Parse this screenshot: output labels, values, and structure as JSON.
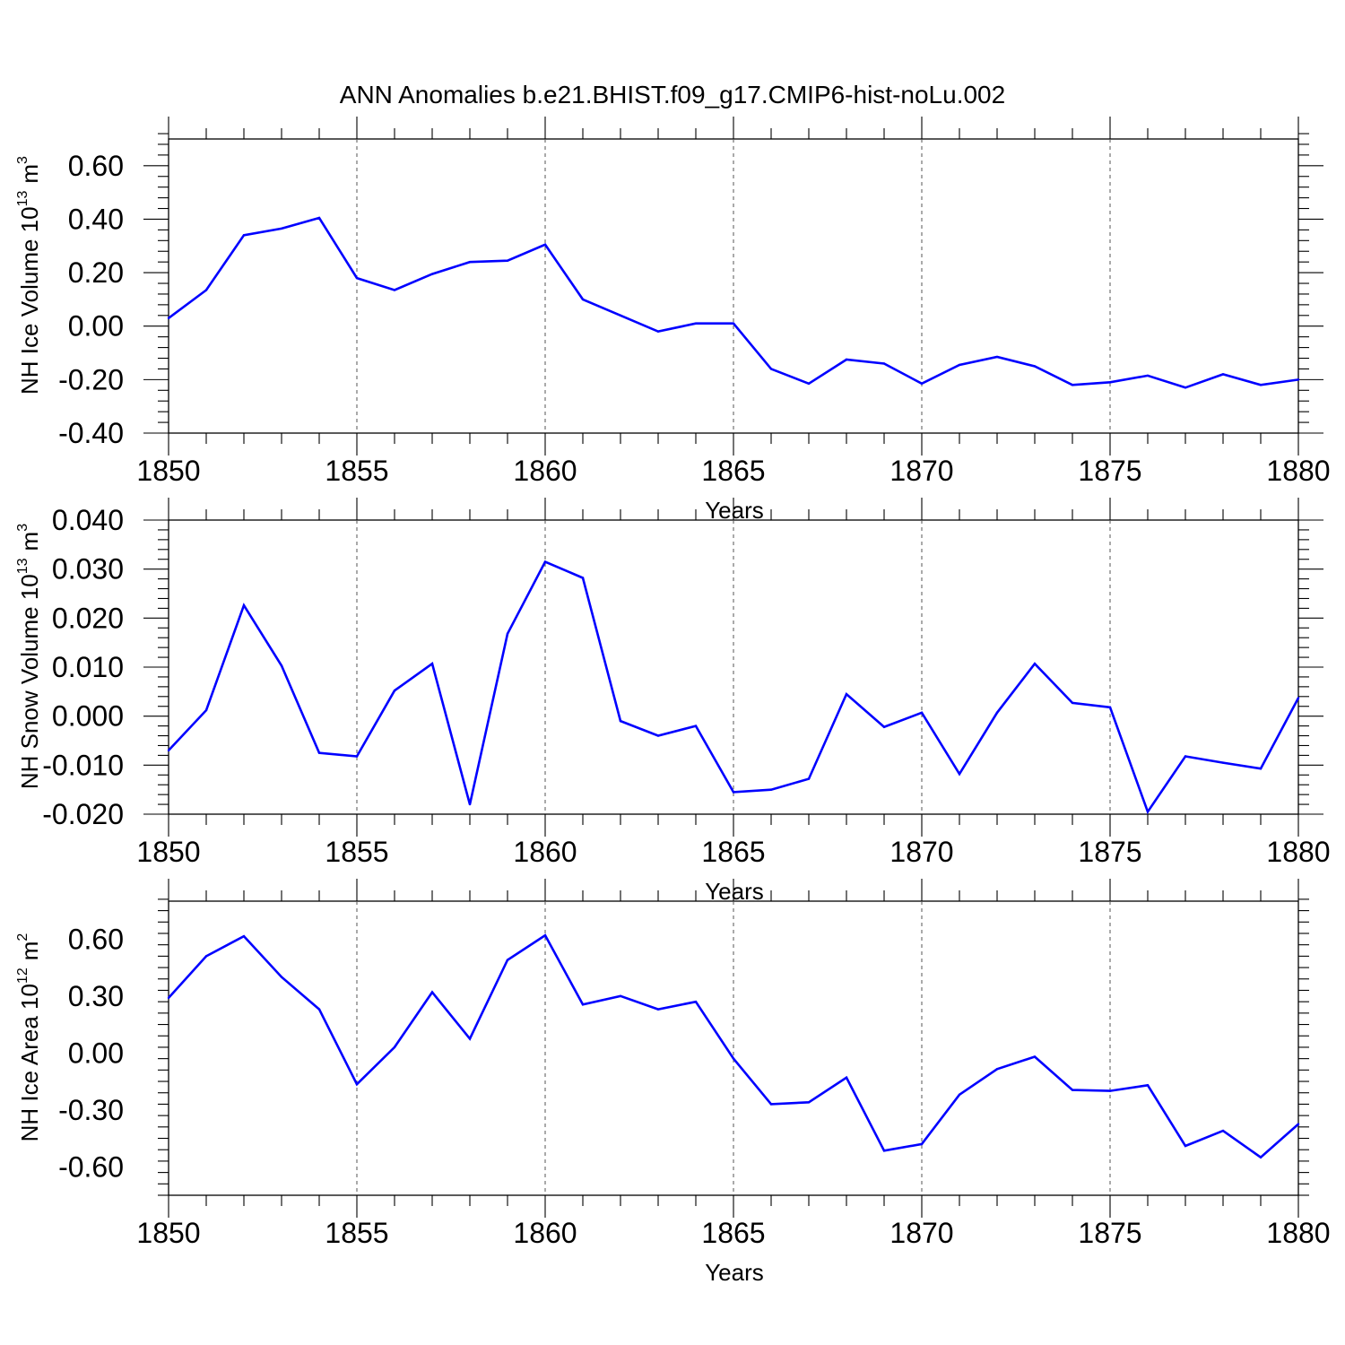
{
  "figure": {
    "title": "ANN Anomalies b.e21.BHIST.f09_g17.CMIP6-hist-noLu.002"
  },
  "colors": {
    "series": "#0000ff",
    "axes": "#000000",
    "grid": "#555555"
  },
  "chart_data": [
    {
      "type": "line",
      "ylabel": "NH Ice Volume 10",
      "ylabel_exp": "13",
      "ylabel_unit": "m",
      "ylabel_unit_exp": "3",
      "xlabel": "Years",
      "xlim": [
        1850,
        1880
      ],
      "ylim": [
        -0.4,
        0.7
      ],
      "xticks": [
        1850,
        1855,
        1860,
        1865,
        1870,
        1875,
        1880
      ],
      "xtick_labels": [
        "1850",
        "1855",
        "1860",
        "1865",
        "1870",
        "1875",
        "1880"
      ],
      "yticks": [
        -0.4,
        -0.2,
        0.0,
        0.2,
        0.4,
        0.6
      ],
      "ytick_labels": [
        "-0.40",
        "-0.20",
        "0.00",
        "0.20",
        "0.40",
        "0.60"
      ],
      "grid": "vertical dashed at major x ticks",
      "x": [
        1850,
        1851,
        1852,
        1853,
        1854,
        1855,
        1856,
        1857,
        1858,
        1859,
        1860,
        1861,
        1862,
        1863,
        1864,
        1865,
        1866,
        1867,
        1868,
        1869,
        1870,
        1871,
        1872,
        1873,
        1874,
        1875,
        1876,
        1877,
        1878,
        1879,
        1880
      ],
      "values": [
        0.03,
        0.135,
        0.34,
        0.365,
        0.405,
        0.18,
        0.135,
        0.195,
        0.24,
        0.245,
        0.305,
        0.1,
        0.04,
        -0.02,
        0.01,
        0.01,
        -0.16,
        -0.215,
        -0.125,
        -0.14,
        -0.215,
        -0.145,
        -0.115,
        -0.15,
        -0.22,
        -0.21,
        -0.185,
        -0.23,
        -0.18,
        -0.22,
        -0.2
      ]
    },
    {
      "type": "line",
      "ylabel": "NH Snow Volume 10",
      "ylabel_exp": "13",
      "ylabel_unit": "m",
      "ylabel_unit_exp": "3",
      "xlabel": "Years",
      "xlim": [
        1850,
        1880
      ],
      "ylim": [
        -0.02,
        0.04
      ],
      "xticks": [
        1850,
        1855,
        1860,
        1865,
        1870,
        1875,
        1880
      ],
      "xtick_labels": [
        "1850",
        "1855",
        "1860",
        "1865",
        "1870",
        "1875",
        "1880"
      ],
      "yticks": [
        -0.02,
        -0.01,
        0.0,
        0.01,
        0.02,
        0.03,
        0.04
      ],
      "ytick_labels": [
        "-0.020",
        "-0.010",
        "0.000",
        "0.010",
        "0.020",
        "0.030",
        "0.040"
      ],
      "grid": "vertical dashed at major x ticks",
      "x": [
        1850,
        1851,
        1852,
        1853,
        1854,
        1855,
        1856,
        1857,
        1858,
        1859,
        1860,
        1861,
        1862,
        1863,
        1864,
        1865,
        1866,
        1867,
        1868,
        1869,
        1870,
        1871,
        1872,
        1873,
        1874,
        1875,
        1876,
        1877,
        1878,
        1879,
        1880
      ],
      "values": [
        -0.007,
        0.0012,
        0.0226,
        0.0103,
        -0.0075,
        -0.0082,
        0.0052,
        0.0107,
        -0.018,
        0.0168,
        0.0315,
        0.0282,
        -0.001,
        -0.004,
        -0.002,
        -0.0155,
        -0.015,
        -0.0128,
        0.0045,
        -0.0022,
        0.0007,
        -0.0118,
        0.0007,
        0.0107,
        0.0027,
        0.0018,
        -0.0195,
        -0.0082,
        -0.0095,
        -0.0107,
        0.0037
      ]
    },
    {
      "type": "line",
      "ylabel": "NH Ice Area 10",
      "ylabel_exp": "12",
      "ylabel_unit": "m",
      "ylabel_unit_exp": "2",
      "xlabel": "Years",
      "xlim": [
        1850,
        1880
      ],
      "ylim": [
        -0.75,
        0.8
      ],
      "xticks": [
        1850,
        1855,
        1860,
        1865,
        1870,
        1875,
        1880
      ],
      "xtick_labels": [
        "1850",
        "1855",
        "1860",
        "1865",
        "1870",
        "1875",
        "1880"
      ],
      "yticks": [
        -0.6,
        -0.3,
        0.0,
        0.3,
        0.6
      ],
      "ytick_labels": [
        "-0.60",
        "-0.30",
        "0.00",
        "0.30",
        "0.60"
      ],
      "grid": "vertical dashed at major x ticks",
      "x": [
        1850,
        1851,
        1852,
        1853,
        1854,
        1855,
        1856,
        1857,
        1858,
        1859,
        1860,
        1861,
        1862,
        1863,
        1864,
        1865,
        1866,
        1867,
        1868,
        1869,
        1870,
        1871,
        1872,
        1873,
        1874,
        1875,
        1876,
        1877,
        1878,
        1879,
        1880
      ],
      "values": [
        0.29,
        0.51,
        0.615,
        0.4,
        0.23,
        -0.165,
        0.03,
        0.32,
        0.075,
        0.49,
        0.62,
        0.255,
        0.3,
        0.23,
        0.27,
        -0.03,
        -0.27,
        -0.26,
        -0.13,
        -0.515,
        -0.48,
        -0.22,
        -0.085,
        -0.02,
        -0.195,
        -0.2,
        -0.17,
        -0.49,
        -0.41,
        -0.55,
        -0.375
      ]
    }
  ]
}
